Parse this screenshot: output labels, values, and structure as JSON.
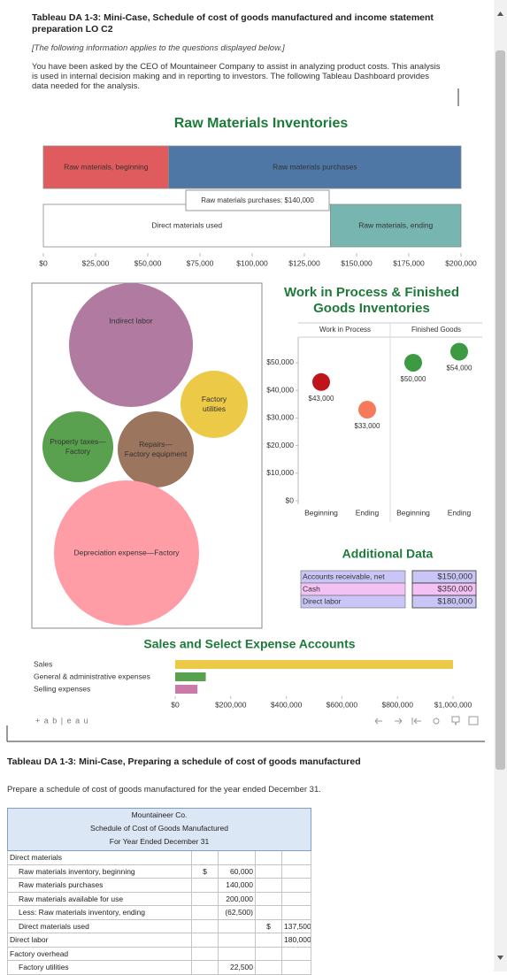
{
  "header": {
    "title": "Tableau DA 1-3: Mini-Case, Schedule of cost of goods manufactured and income statement preparation LO C2",
    "note": "[The following information applies to the questions displayed below.]",
    "intro": "You have been asked by the CEO of Mountaineer Company to assist in analyzing product costs. This analysis is used in internal decision making and in reporting to investors. The following Tableau Dashboard provides data needed for the analysis."
  },
  "dashboard": {
    "raw_materials": {
      "type": "bar",
      "title": "Raw Materials Inventories",
      "xlim": [
        0,
        200000
      ],
      "xticks": [
        {
          "value": 0,
          "label": "$0"
        },
        {
          "value": 25000,
          "label": "$25,000"
        },
        {
          "value": 50000,
          "label": "$50,000"
        },
        {
          "value": 75000,
          "label": "$75,000"
        },
        {
          "value": 100000,
          "label": "$100,000"
        },
        {
          "value": 125000,
          "label": "$125,000"
        },
        {
          "value": 150000,
          "label": "$150,000"
        },
        {
          "value": 175000,
          "label": "$175,000"
        },
        {
          "value": 200000,
          "label": "$200,000"
        }
      ],
      "rows": [
        {
          "segments": [
            {
              "name": "Raw materials, beginning",
              "value": 60000,
              "color": "#e05b5d"
            },
            {
              "name": "Raw materials purchases",
              "value": 140000,
              "color": "#4e77a6"
            }
          ]
        },
        {
          "segments": [
            {
              "name": "Direct materials used",
              "value": 137500,
              "color": "#ffffff"
            },
            {
              "name": "Raw materials, ending",
              "value": 62500,
              "color": "#77b6b0"
            }
          ]
        }
      ],
      "tooltip": "Raw materials purchases: $140,000"
    },
    "overhead": {
      "type": "bubble",
      "labels": [
        "Indirect labor",
        "Factory utilities",
        "Property taxes—Factory",
        "Repairs—Factory equipment",
        "Depreciation expense—Factory"
      ],
      "colors": [
        "#b07aa1",
        "#edc948",
        "#59a14f",
        "#9c755f",
        "#ff9da7"
      ]
    },
    "inventories": {
      "type": "scatter",
      "title": "Work in Process & Finished Goods Inventories",
      "categories": [
        "Beginning",
        "Ending"
      ],
      "ylim": [
        0,
        58000
      ],
      "yticks": [
        {
          "value": 0,
          "label": "$0"
        },
        {
          "value": 10000,
          "label": "$10,000"
        },
        {
          "value": 20000,
          "label": "$20,000"
        },
        {
          "value": 30000,
          "label": "$30,000"
        },
        {
          "value": 40000,
          "label": "$40,000"
        },
        {
          "value": 50000,
          "label": "$50,000"
        }
      ],
      "series": [
        {
          "name": "Work in Process",
          "colors": [
            "#c0141c",
            "#f7785a"
          ],
          "values": [
            43000,
            33000
          ],
          "value_labels": [
            "$43,000",
            "$33,000"
          ]
        },
        {
          "name": "Finished Goods",
          "colors": [
            "#3b9a42",
            "#3b9a42"
          ],
          "values": [
            50000,
            54000
          ],
          "value_labels": [
            "$50,000",
            "$54,000"
          ]
        }
      ]
    },
    "additional": {
      "title": "Additional Data",
      "rows": [
        [
          "Accounts receivable, net",
          "$150,000"
        ],
        [
          "Cash",
          "$350,000"
        ],
        [
          "Direct labor",
          "$180,000"
        ]
      ],
      "colors": [
        "#c9c6f7",
        "#f3c1f3",
        "#c9c6f7"
      ]
    },
    "sales": {
      "type": "hbar",
      "title": "Sales and Select Expense Accounts",
      "categories": [
        "Sales",
        "General & administrative expenses",
        "Selling expenses"
      ],
      "values": [
        1000000,
        110000,
        80000
      ],
      "colors": [
        "#edc948",
        "#59a14f",
        "#c97aa8"
      ],
      "xlim": [
        0,
        1000000
      ],
      "xticks": [
        {
          "value": 0,
          "label": "$0"
        },
        {
          "value": 200000,
          "label": "$200,000"
        },
        {
          "value": 400000,
          "label": "$400,000"
        },
        {
          "value": 600000,
          "label": "$600,000"
        },
        {
          "value": 800000,
          "label": "$800,000"
        },
        {
          "value": 1000000,
          "label": "$1,000,000"
        }
      ]
    },
    "brand": "+ a b | e a u"
  },
  "question2": {
    "title": "Tableau DA 1-3: Mini-Case, Preparing a schedule of cost of goods manufactured",
    "instruction": "Prepare a schedule of cost of goods manufactured for the year ended December 31.",
    "schedule": {
      "company": "Mountaineer Co.",
      "name": "Schedule of Cost of Goods Manufactured",
      "period": "For Year Ended December 31",
      "groups": [
        {
          "heading": "Direct materials",
          "items": [
            {
              "label": "Raw materials inventory, beginning",
              "col1_prefix": "$",
              "col1": "60,000"
            },
            {
              "label": "Raw materials purchases",
              "col1": "140,000"
            },
            {
              "label": "Raw materials available for use",
              "col1": "200,000"
            },
            {
              "label": "Less: Raw materials inventory, ending",
              "col1": "(62,500)"
            },
            {
              "label": "Direct materials used",
              "col2_prefix": "$",
              "col2": "137,500"
            }
          ]
        },
        {
          "heading": "Direct labor",
          "col2": "180,000",
          "items": []
        },
        {
          "heading": "Factory overhead",
          "items": [
            {
              "label": "Factory utilities",
              "col1": "22,500"
            }
          ]
        }
      ]
    }
  }
}
